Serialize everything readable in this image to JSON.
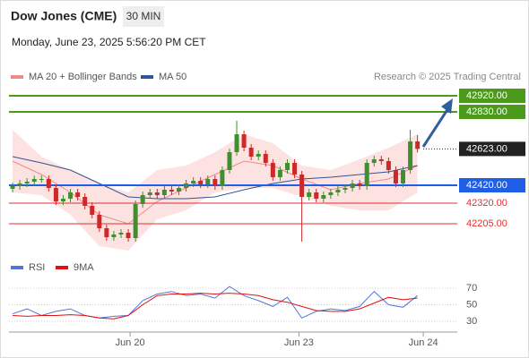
{
  "header": {
    "title": "Dow Jones (CME)",
    "interval": "30 MIN",
    "timestamp": "Monday, June 23, 2025 5:56:20 PM CET"
  },
  "chart_data": [
    {
      "type": "candlestick",
      "source": "Research © 2025 Trading Central",
      "xlim": [
        -0.5,
        61.5
      ],
      "ylim": [
        42030,
        42980
      ],
      "up_color": "#3f8f2f",
      "down_color": "#cc2a2a",
      "x": [
        0,
        1,
        2,
        3,
        4,
        5,
        6,
        7,
        8,
        9,
        10,
        11,
        12,
        13,
        14,
        15,
        16,
        17,
        18,
        19,
        20,
        21,
        22,
        23,
        24,
        25,
        26,
        27,
        28,
        29,
        30,
        31,
        32,
        33,
        34,
        35,
        36,
        37,
        38,
        39,
        40,
        41,
        42,
        43,
        44,
        45,
        46,
        47,
        48,
        49,
        50,
        51,
        52,
        53,
        54,
        55,
        56
      ],
      "open": [
        42400,
        42415,
        42430,
        42440,
        42455,
        42455,
        42405,
        42330,
        42345,
        42380,
        42355,
        42305,
        42255,
        42180,
        42130,
        42145,
        42155,
        42125,
        42315,
        42365,
        42380,
        42365,
        42395,
        42385,
        42405,
        42430,
        42445,
        42425,
        42455,
        42415,
        42505,
        42605,
        42705,
        42630,
        42580,
        42595,
        42545,
        42465,
        42505,
        42545,
        42480,
        42355,
        42380,
        42345,
        42365,
        42380,
        42395,
        42405,
        42430,
        42415,
        42545,
        42565,
        42555,
        42505,
        42430,
        42505,
        42665
      ],
      "high": [
        42435,
        42450,
        42460,
        42475,
        42475,
        42475,
        42425,
        42365,
        42400,
        42400,
        42375,
        42325,
        42275,
        42200,
        42165,
        42175,
        42175,
        42335,
        42385,
        42400,
        42400,
        42415,
        42415,
        42425,
        42450,
        42465,
        42465,
        42475,
        42475,
        42525,
        42625,
        42780,
        42725,
        42650,
        42615,
        42615,
        42565,
        42525,
        42565,
        42565,
        42500,
        42400,
        42400,
        42385,
        42400,
        42415,
        42425,
        42450,
        42450,
        42565,
        42585,
        42585,
        42575,
        42525,
        42525,
        42730,
        42700
      ],
      "low": [
        42380,
        42395,
        42410,
        42420,
        42435,
        42385,
        42310,
        42310,
        42325,
        42335,
        42285,
        42235,
        42160,
        42110,
        42110,
        42125,
        42105,
        42105,
        42295,
        42345,
        42345,
        42345,
        42365,
        42365,
        42385,
        42410,
        42405,
        42405,
        42395,
        42395,
        42485,
        42585,
        42610,
        42560,
        42560,
        42525,
        42445,
        42445,
        42485,
        42460,
        42105,
        42335,
        42325,
        42325,
        42345,
        42360,
        42375,
        42385,
        42395,
        42395,
        42525,
        42535,
        42485,
        42410,
        42410,
        42485,
        42603
      ],
      "close": [
        42415,
        42430,
        42440,
        42455,
        42455,
        42405,
        42330,
        42345,
        42380,
        42355,
        42305,
        42255,
        42180,
        42130,
        42145,
        42155,
        42125,
        42315,
        42365,
        42380,
        42365,
        42395,
        42385,
        42405,
        42430,
        42445,
        42425,
        42455,
        42415,
        42505,
        42605,
        42705,
        42630,
        42580,
        42595,
        42545,
        42465,
        42505,
        42545,
        42480,
        42355,
        42380,
        42345,
        42365,
        42380,
        42395,
        42405,
        42430,
        42415,
        42545,
        42565,
        42555,
        42505,
        42430,
        42505,
        42665,
        42623
      ],
      "overlays": [
        {
          "name": "MA 20 + Bollinger Bands",
          "color": "#f08a8a",
          "band_color": "#fde2e2",
          "x": [
            0,
            4,
            8,
            12,
            16,
            20,
            24,
            28,
            32,
            36,
            40,
            44,
            48,
            52,
            56
          ],
          "values": [
            42555,
            42480,
            42380,
            42255,
            42205,
            42330,
            42405,
            42480,
            42555,
            42530,
            42455,
            42395,
            42430,
            42455,
            42530
          ],
          "upper": [
            42730,
            42580,
            42505,
            42430,
            42380,
            42505,
            42530,
            42605,
            42705,
            42655,
            42530,
            42505,
            42565,
            42630,
            42705
          ],
          "lower": [
            42380,
            42365,
            42255,
            42080,
            42055,
            42230,
            42280,
            42380,
            42405,
            42405,
            42355,
            42305,
            42280,
            42280,
            42380
          ]
        },
        {
          "name": "MA 50",
          "color": "#2d5597",
          "x": [
            0,
            4,
            8,
            12,
            16,
            20,
            24,
            28,
            32,
            36,
            40,
            44,
            48,
            52,
            56
          ],
          "values": [
            42580,
            42545,
            42505,
            42430,
            42355,
            42345,
            42345,
            42355,
            42395,
            42430,
            42455,
            42465,
            42480,
            42495,
            42530
          ]
        }
      ],
      "levels": [
        {
          "value": 42920,
          "label": "42920.00",
          "color": "#4c9a1c",
          "style": "box"
        },
        {
          "value": 42830,
          "label": "42830.00",
          "color": "#4c9a1c",
          "style": "box"
        },
        {
          "value": 42623,
          "label": "42623.00",
          "color": "#222222",
          "style": "dotted"
        },
        {
          "value": 42420,
          "label": "42420.00",
          "color": "#1f5ee6",
          "style": "box"
        },
        {
          "value": 42320,
          "label": "42320.00",
          "color": "#e03030",
          "style": "text"
        },
        {
          "value": 42205,
          "label": "42205.00",
          "color": "#e03030",
          "style": "text"
        }
      ]
    },
    {
      "type": "line",
      "xlim": [
        -0.5,
        61.5
      ],
      "ylim": [
        20,
        80
      ],
      "yticks": [
        30,
        50,
        70
      ],
      "grid": true,
      "xticks": [
        {
          "value": 16.25,
          "label": "Jun 20"
        },
        {
          "value": 39.6,
          "label": "Jun 23"
        },
        {
          "value": 56.8,
          "label": "Jun 24"
        }
      ],
      "x": [
        0,
        2,
        4,
        6,
        8,
        10,
        12,
        14,
        16,
        18,
        20,
        22,
        24,
        26,
        28,
        30,
        32,
        34,
        36,
        38,
        40,
        42,
        44,
        46,
        48,
        50,
        52,
        54,
        56
      ],
      "series": [
        {
          "name": "RSI",
          "color": "#5577d4",
          "values": [
            39,
            45,
            37,
            42,
            45,
            37,
            34,
            36,
            37,
            55,
            63,
            66,
            61,
            63,
            58,
            72,
            61,
            55,
            48,
            59,
            34,
            42,
            45,
            43,
            48,
            66,
            50,
            47,
            61
          ]
        },
        {
          "name": "9MA",
          "color": "#e01010",
          "values": [
            37,
            36,
            37,
            37,
            38,
            37,
            34,
            33,
            37,
            50,
            61,
            63,
            63,
            64,
            63,
            64,
            63,
            61,
            56,
            53,
            48,
            43,
            42,
            42,
            45,
            52,
            59,
            56,
            58
          ]
        }
      ]
    }
  ]
}
